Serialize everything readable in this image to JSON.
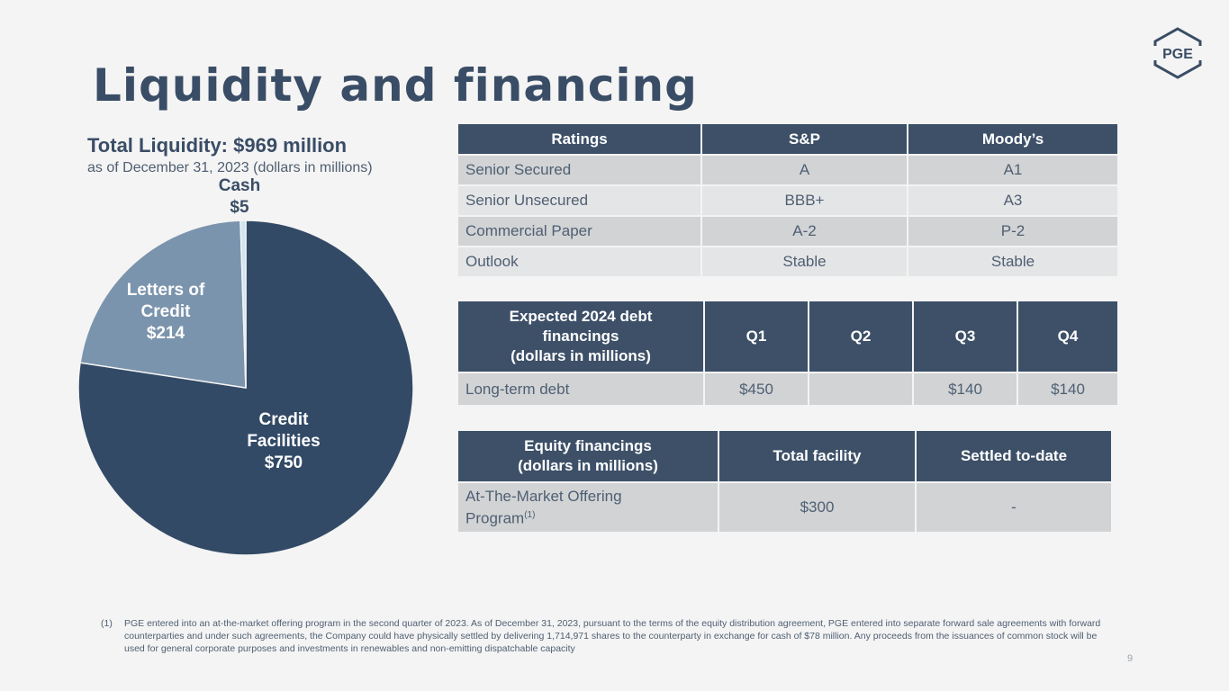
{
  "page": {
    "title": "Liquidity and financing",
    "page_number": "9"
  },
  "logo": {
    "text": "PGE"
  },
  "liquidity": {
    "title": "Total Liquidity: $969 million",
    "subtitle": "as of December 31, 2023 (dollars in millions)"
  },
  "chart_data": {
    "type": "pie",
    "title": "Total Liquidity: $969 million",
    "subtitle": "as of December 31, 2023 (dollars in millions)",
    "slices": [
      {
        "name": "Credit Facilities",
        "label_lines": [
          "Credit",
          "Facilities"
        ],
        "value": 750,
        "value_label": "$750",
        "color": "#324a66",
        "label_color": "#ffffff"
      },
      {
        "name": "Letters of Credit",
        "label_lines": [
          "Letters of",
          "Credit"
        ],
        "value": 214,
        "value_label": "$214",
        "color": "#7b94ad",
        "label_color": "#ffffff"
      },
      {
        "name": "Cash",
        "label_lines": [
          "Cash"
        ],
        "value": 5,
        "value_label": "$5",
        "color": "#cfe6f2",
        "label_color": "#3a4d66"
      }
    ]
  },
  "ratings": {
    "headers": [
      "Ratings",
      "S&P",
      "Moody’s"
    ],
    "rows": [
      [
        "Senior Secured",
        "A",
        "A1"
      ],
      [
        "Senior Unsecured",
        "BBB+",
        "A3"
      ],
      [
        "Commercial Paper",
        "A-2",
        "P-2"
      ],
      [
        "Outlook",
        "Stable",
        "Stable"
      ]
    ]
  },
  "debt": {
    "header_lines": [
      "Expected 2024 debt",
      "financings",
      "(dollars in millions)"
    ],
    "quarters": [
      "Q1",
      "Q2",
      "Q3",
      "Q4"
    ],
    "row_label": "Long-term debt",
    "values": [
      "$450",
      "",
      "$140",
      "$140"
    ]
  },
  "equity": {
    "header_lines": [
      "Equity financings",
      "(dollars in millions)"
    ],
    "total_header": "Total facility",
    "settled_header": "Settled to-date",
    "row_label_lines": [
      "At-The-Market Offering",
      "Program"
    ],
    "row_label_sup": "(1)",
    "total": "$300",
    "settled": "-"
  },
  "footnote": {
    "marker": "(1)",
    "text": "PGE entered into an at-the-market offering program in the second quarter of 2023. As of December 31, 2023, pursuant to the terms of the equity distribution agreement, PGE entered into separate forward sale agreements with forward counterparties and under such agreements, the Company could have physically settled by delivering 1,714,971 shares to the counterparty in exchange for cash of $78 million. Any proceeds from the issuances of common stock will be used for general corporate purposes and investments in renewables and non-emitting dispatchable capacity"
  }
}
